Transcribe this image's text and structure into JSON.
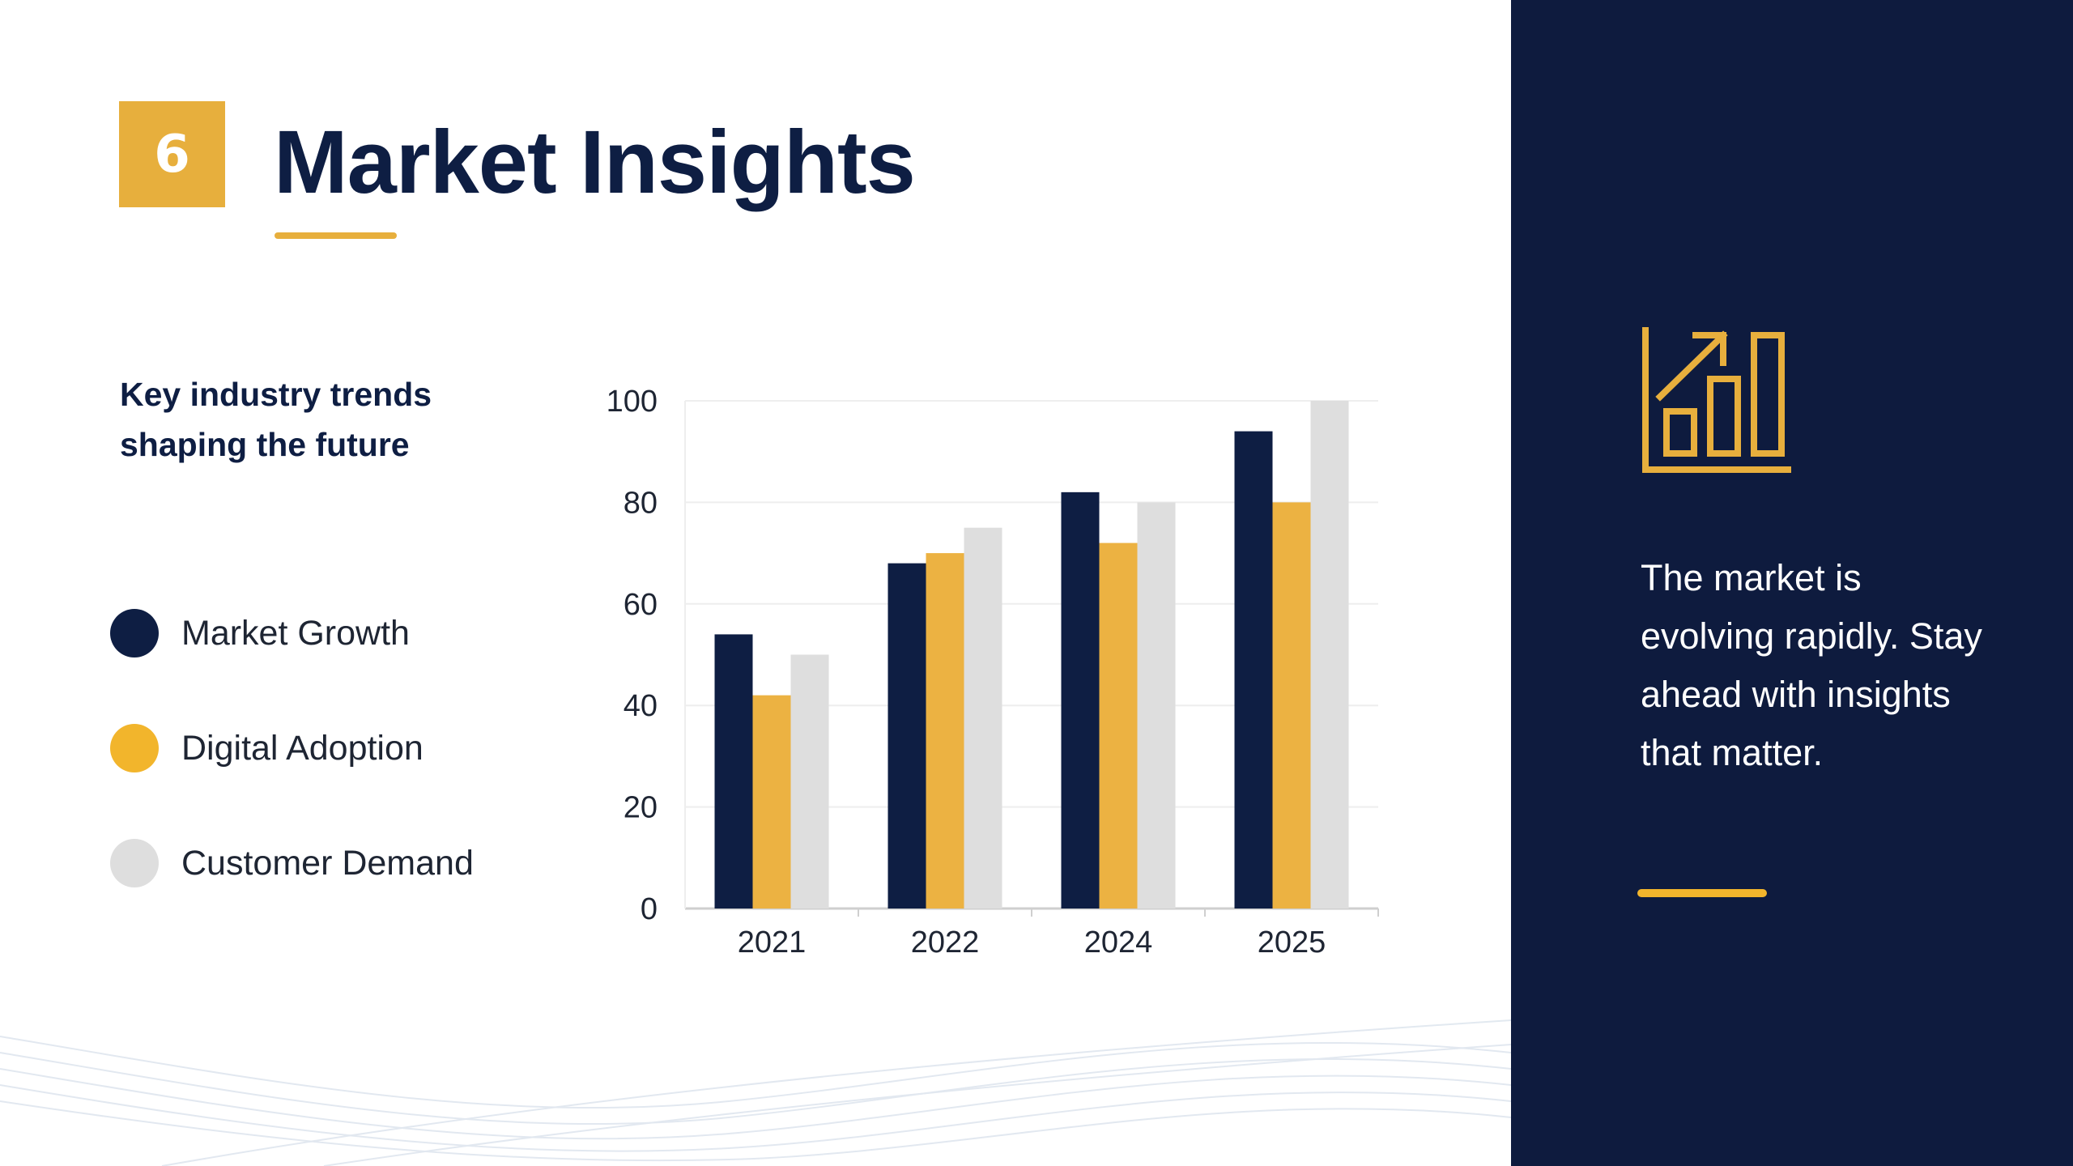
{
  "slide": {
    "number": "6",
    "title": "Market Insights",
    "subtitle": "Key industry trends shaping the future",
    "sidebar_text": "The market is evolving rapidly. Stay ahead with insights that matter.",
    "sidebar_icon": "bar-chart-growth-icon"
  },
  "colors": {
    "navy": "#0E1B3E",
    "gold": "#E7AF3D",
    "light_gray": "#DEDEDE"
  },
  "legend": [
    {
      "label": "Market Growth",
      "color": "#0E1E43"
    },
    {
      "label": "Digital Adoption",
      "color": "#F2B52C"
    },
    {
      "label": "Customer Demand",
      "color": "#DEDEDE"
    }
  ],
  "chart_data": {
    "type": "bar",
    "categories": [
      "2021",
      "2022",
      "2024",
      "2025"
    ],
    "series": [
      {
        "name": "Market Growth",
        "values": [
          54,
          68,
          82,
          94
        ],
        "color": "#0E1E43"
      },
      {
        "name": "Digital Adoption",
        "values": [
          42,
          70,
          72,
          80
        ],
        "color": "#ECB242"
      },
      {
        "name": "Customer Demand",
        "values": [
          50,
          75,
          80,
          100
        ],
        "color": "#DEDEDE"
      }
    ],
    "ylim": [
      0,
      100
    ],
    "yticks": [
      0,
      20,
      40,
      60,
      80,
      100
    ],
    "grid": true,
    "legend_position": "left"
  }
}
